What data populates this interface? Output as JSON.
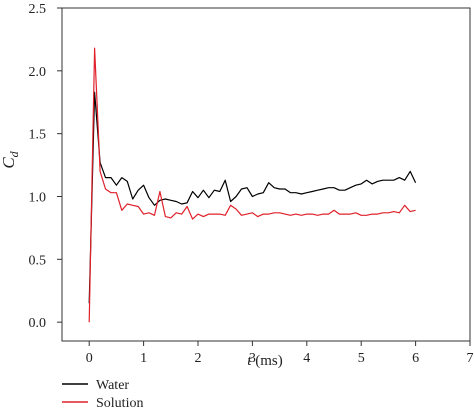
{
  "chart_data": {
    "type": "line",
    "title": "",
    "xlabel": "t (ms)",
    "xlabel_var": "t",
    "xlabel_unit": " (ms)",
    "ylabel": "C_d",
    "ylabel_main": "C",
    "ylabel_sub": "d",
    "xlim": [
      -0.5,
      7
    ],
    "ylim": [
      -0.15,
      2.5
    ],
    "xticks": [
      0,
      1,
      2,
      3,
      4,
      5,
      6,
      7
    ],
    "yticks": [
      0.0,
      0.5,
      1.0,
      1.5,
      2.0,
      2.5
    ],
    "xtick_labels": [
      "0",
      "1",
      "2",
      "3",
      "4",
      "5",
      "6",
      "7"
    ],
    "ytick_labels": [
      "0.0",
      "0.5",
      "1.0",
      "1.5",
      "2.0",
      "2.5"
    ],
    "grid": false,
    "legend_position": "bottom-left, below plot",
    "series": [
      {
        "name": "Water",
        "color": "#000000",
        "x": [
          0,
          0.1,
          0.2,
          0.3,
          0.4,
          0.5,
          0.6,
          0.7,
          0.8,
          0.9,
          1.0,
          1.1,
          1.2,
          1.3,
          1.4,
          1.5,
          1.6,
          1.7,
          1.8,
          1.9,
          2.0,
          2.1,
          2.2,
          2.3,
          2.4,
          2.5,
          2.6,
          2.7,
          2.8,
          2.9,
          3.0,
          3.1,
          3.2,
          3.3,
          3.4,
          3.5,
          3.6,
          3.7,
          3.8,
          3.9,
          4.0,
          4.1,
          4.2,
          4.3,
          4.4,
          4.5,
          4.6,
          4.7,
          4.8,
          4.9,
          5.0,
          5.1,
          5.2,
          5.3,
          5.4,
          5.5,
          5.6,
          5.7,
          5.8,
          5.9,
          6.0
        ],
        "values": [
          0.15,
          1.83,
          1.27,
          1.15,
          1.15,
          1.09,
          1.15,
          1.12,
          0.98,
          1.05,
          1.09,
          0.99,
          0.93,
          0.97,
          0.98,
          0.97,
          0.96,
          0.94,
          0.95,
          1.04,
          0.99,
          1.05,
          0.99,
          1.05,
          1.04,
          1.13,
          0.96,
          1.0,
          1.06,
          1.07,
          1.0,
          1.02,
          1.03,
          1.11,
          1.07,
          1.06,
          1.06,
          1.03,
          1.03,
          1.02,
          1.03,
          1.04,
          1.05,
          1.06,
          1.07,
          1.07,
          1.05,
          1.05,
          1.07,
          1.09,
          1.1,
          1.13,
          1.1,
          1.12,
          1.13,
          1.13,
          1.13,
          1.15,
          1.13,
          1.2,
          1.11
        ]
      },
      {
        "name": "Solution",
        "color": "#e0202a",
        "x": [
          0,
          0.1,
          0.2,
          0.3,
          0.4,
          0.5,
          0.6,
          0.7,
          0.8,
          0.9,
          1.0,
          1.1,
          1.2,
          1.3,
          1.4,
          1.5,
          1.6,
          1.7,
          1.8,
          1.9,
          2.0,
          2.1,
          2.2,
          2.3,
          2.4,
          2.5,
          2.6,
          2.7,
          2.8,
          2.9,
          3.0,
          3.1,
          3.2,
          3.3,
          3.4,
          3.5,
          3.6,
          3.7,
          3.8,
          3.9,
          4.0,
          4.1,
          4.2,
          4.3,
          4.4,
          4.5,
          4.6,
          4.7,
          4.8,
          4.9,
          5.0,
          5.1,
          5.2,
          5.3,
          5.4,
          5.5,
          5.6,
          5.7,
          5.8,
          5.9,
          6.0
        ],
        "values": [
          0.0,
          2.18,
          1.2,
          1.06,
          1.03,
          1.03,
          0.89,
          0.94,
          0.93,
          0.92,
          0.86,
          0.87,
          0.85,
          1.04,
          0.84,
          0.83,
          0.87,
          0.86,
          0.92,
          0.82,
          0.86,
          0.84,
          0.86,
          0.86,
          0.86,
          0.85,
          0.93,
          0.9,
          0.85,
          0.86,
          0.87,
          0.84,
          0.86,
          0.86,
          0.87,
          0.87,
          0.86,
          0.85,
          0.86,
          0.85,
          0.86,
          0.86,
          0.85,
          0.86,
          0.86,
          0.89,
          0.86,
          0.86,
          0.86,
          0.87,
          0.85,
          0.85,
          0.86,
          0.86,
          0.87,
          0.87,
          0.88,
          0.87,
          0.93,
          0.88,
          0.89
        ]
      }
    ]
  }
}
